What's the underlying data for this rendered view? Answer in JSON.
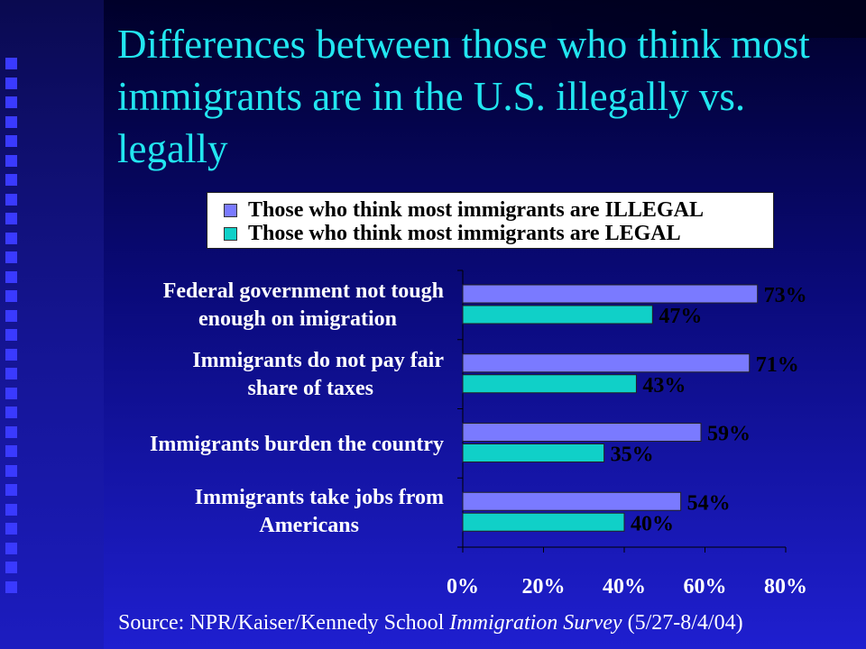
{
  "title": "Differences between those who think most immigrants are in the U.S. illegally vs. legally",
  "source": {
    "prefix": "Source: NPR/Kaiser/Kennedy School ",
    "italic": "Immigration Survey",
    "suffix": " (5/27-8/4/04)"
  },
  "colors": {
    "illegal": "#7a7aff",
    "legal": "#10d0c8",
    "title": "#22e6f0"
  },
  "chart_data": {
    "type": "bar",
    "orientation": "horizontal",
    "categories": [
      [
        "Federal government not tough",
        "enough on imigration"
      ],
      [
        "Immigrants do not pay fair",
        "share of taxes"
      ],
      [
        "Immigrants burden the country"
      ],
      [
        "Immigrants take jobs from",
        "Americans"
      ]
    ],
    "series": [
      {
        "name": "Those who think most immigrants are ILLEGAL",
        "values": [
          73,
          71,
          59,
          54
        ],
        "labels": [
          "73%",
          "71%",
          "59%",
          "54%"
        ]
      },
      {
        "name": "Those who think most immigrants are LEGAL",
        "values": [
          47,
          43,
          35,
          40
        ],
        "labels": [
          "47%",
          "43%",
          "35%",
          "40%"
        ]
      }
    ],
    "xlim": [
      0,
      80
    ],
    "xticks": [
      "0%",
      "20%",
      "40%",
      "60%",
      "80%"
    ],
    "grid": false,
    "legend_position": "top"
  }
}
